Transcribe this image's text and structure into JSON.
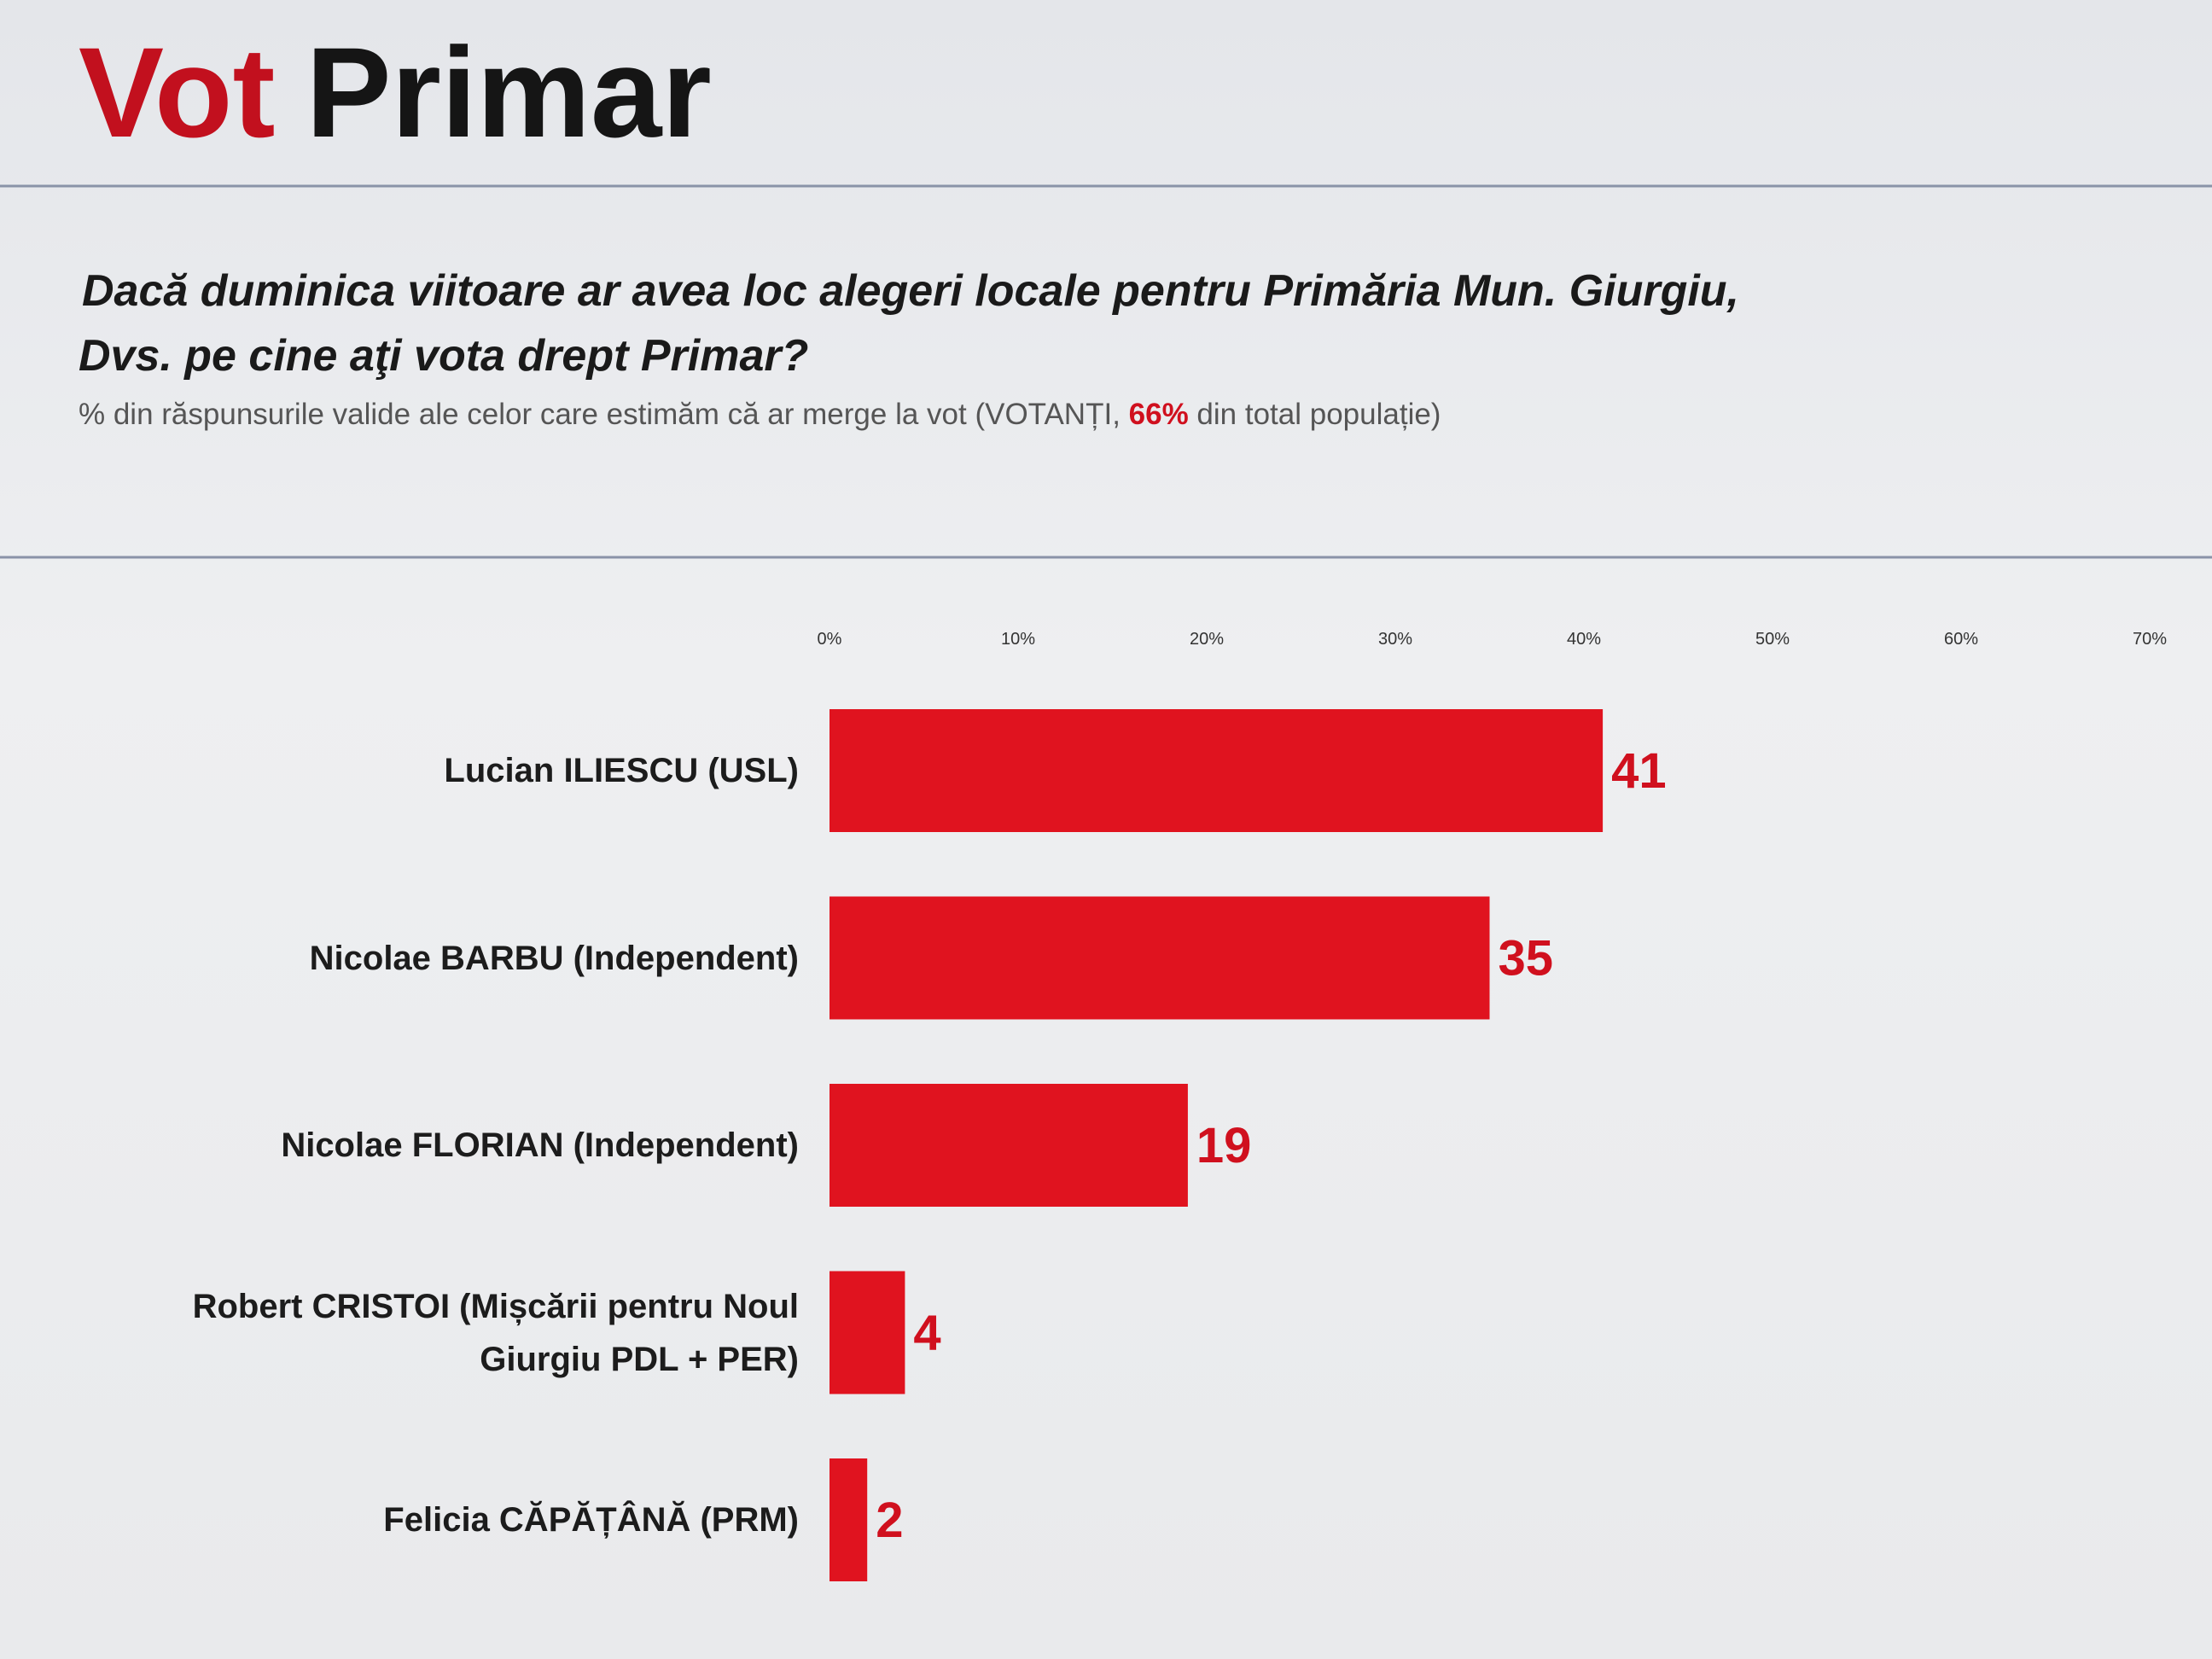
{
  "chart_data": {
    "type": "bar",
    "orientation": "horizontal",
    "title": {
      "accent": "Vot",
      "main": "Primar"
    },
    "subtitle": [
      "Dacă duminica viitoare ar avea loc alegeri locale pentru Primăria Mun. Giurgiu,",
      "Dvs. pe cine aţi vota drept Primar?"
    ],
    "note": [
      "% din răspunsurile valide ale celor care estimăm că ar merge la vot (VOTANȚI, ",
      "66%",
      " din total populație)"
    ],
    "categories": [
      "Lucian ILIESCU (USL)",
      "Nicolae BARBU (Independent)",
      "Nicolae FLORIAN (Independent)",
      "Robert CRISTOI (Mișcării pentru Noul Giurgiu PDL + PER)",
      "Felicia CĂPĂȚÂNĂ (PRM)"
    ],
    "values": [
      41,
      35,
      19,
      4,
      2
    ],
    "color": "#e0131f",
    "xlim": [
      0,
      70
    ],
    "xticks": [
      {
        "value": 0,
        "label": "0%"
      },
      {
        "value": 10,
        "label": "10%"
      },
      {
        "value": 20,
        "label": "20%"
      },
      {
        "value": 30,
        "label": "30%"
      },
      {
        "value": 40,
        "label": "40%"
      },
      {
        "value": 50,
        "label": "50%"
      },
      {
        "value": 60,
        "label": "60%"
      },
      {
        "value": 70,
        "label": "70%"
      }
    ]
  }
}
